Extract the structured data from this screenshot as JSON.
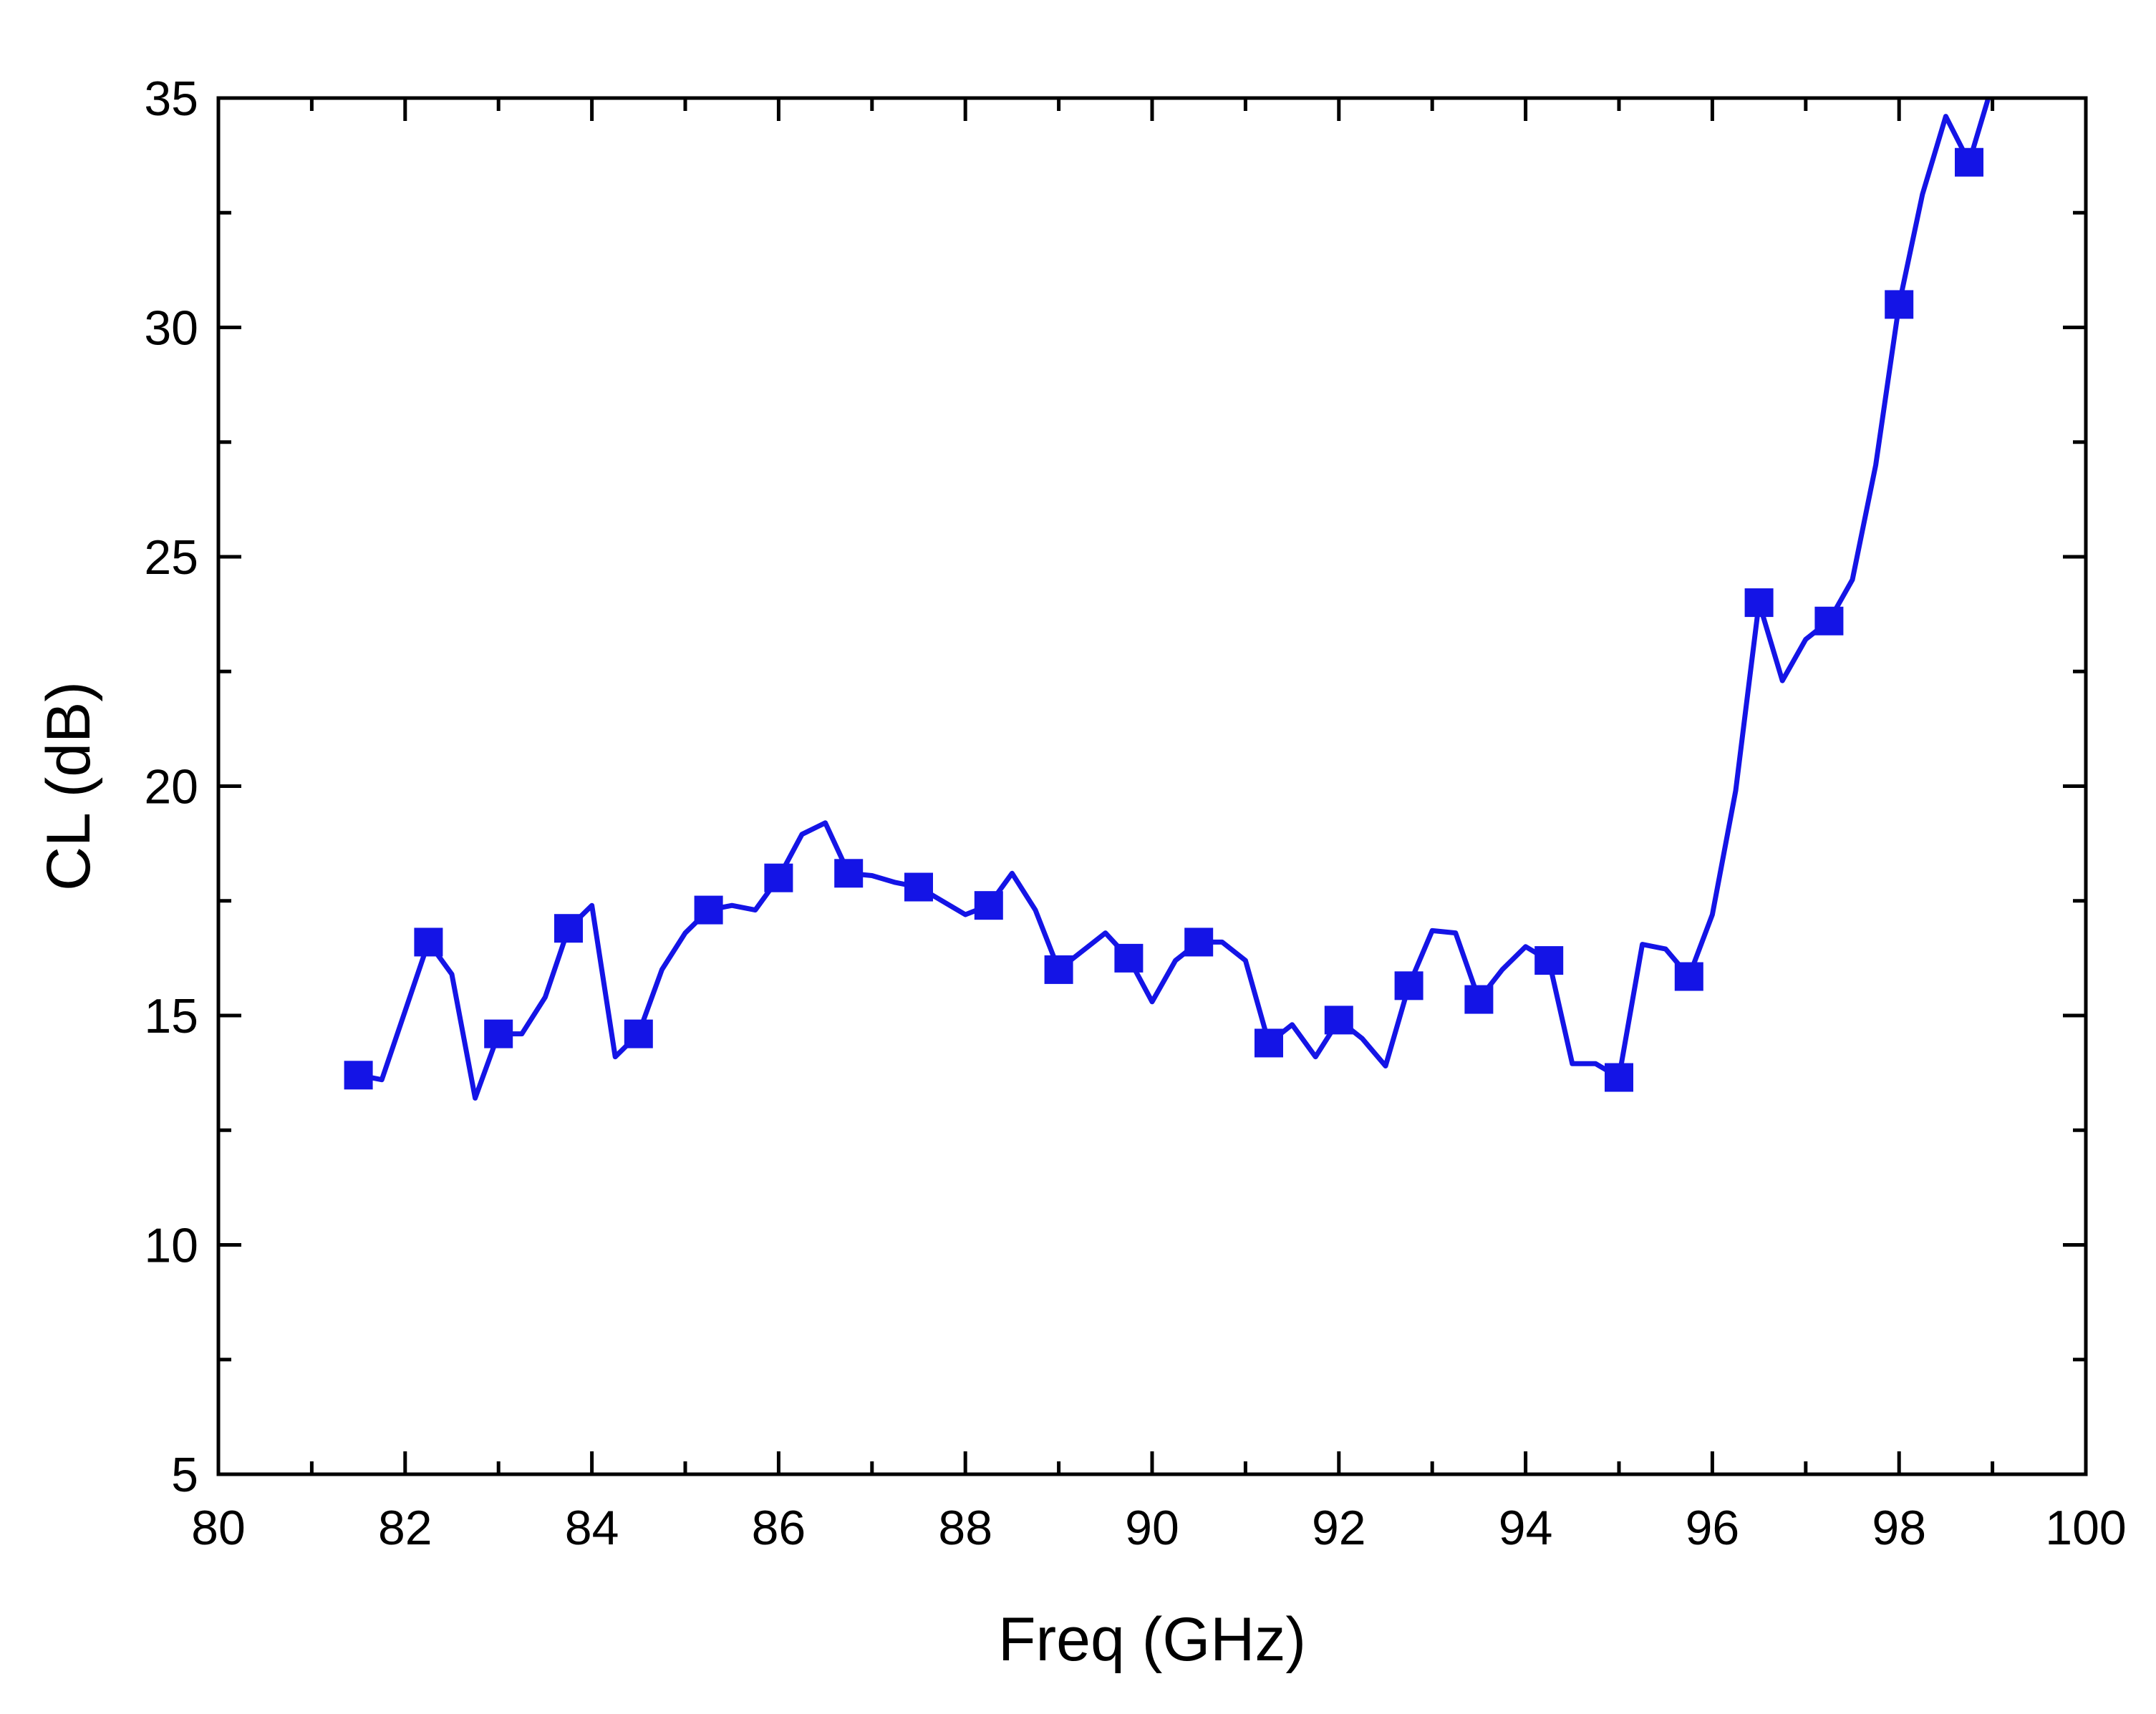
{
  "chart_data": {
    "type": "line",
    "title": "",
    "xlabel": "Freq (GHz)",
    "ylabel": "CL  (dB)",
    "xlim": [
      80,
      100
    ],
    "ylim": [
      5,
      35
    ],
    "x_ticks": [
      80,
      82,
      84,
      86,
      88,
      90,
      92,
      94,
      96,
      98,
      100
    ],
    "y_ticks": [
      5,
      10,
      15,
      20,
      25,
      30,
      35
    ],
    "x_tick_labels": [
      "80",
      "82",
      "84",
      "86",
      "88",
      "90",
      "92",
      "94",
      "96",
      "98",
      "100"
    ],
    "y_tick_labels": [
      "5",
      "10",
      "15",
      "20",
      "25",
      "30",
      "35"
    ],
    "grid": false,
    "line_color": "#1414e6",
    "marker": "square",
    "series": [
      {
        "line": [
          [
            81.5,
            13.7
          ],
          [
            81.75,
            13.6
          ],
          [
            82.0,
            15.1
          ],
          [
            82.25,
            16.6
          ],
          [
            82.5,
            15.9
          ],
          [
            82.75,
            13.2
          ],
          [
            83.0,
            14.6
          ],
          [
            83.25,
            14.6
          ],
          [
            83.5,
            15.4
          ],
          [
            83.75,
            16.9
          ],
          [
            84.0,
            17.4
          ],
          [
            84.25,
            14.1
          ],
          [
            84.5,
            14.6
          ],
          [
            84.75,
            16.0
          ],
          [
            85.0,
            16.8
          ],
          [
            85.25,
            17.3
          ],
          [
            85.5,
            17.4
          ],
          [
            85.75,
            17.3
          ],
          [
            86.0,
            18.0
          ],
          [
            86.25,
            18.95
          ],
          [
            86.5,
            19.2
          ],
          [
            86.75,
            18.1
          ],
          [
            87.0,
            18.05
          ],
          [
            87.25,
            17.9
          ],
          [
            87.5,
            17.8
          ],
          [
            87.75,
            17.5
          ],
          [
            88.0,
            17.2
          ],
          [
            88.25,
            17.4
          ],
          [
            88.5,
            18.1
          ],
          [
            88.75,
            17.3
          ],
          [
            89.0,
            16.0
          ],
          [
            89.25,
            16.4
          ],
          [
            89.5,
            16.8
          ],
          [
            89.75,
            16.25
          ],
          [
            90.0,
            15.3
          ],
          [
            90.25,
            16.2
          ],
          [
            90.5,
            16.6
          ],
          [
            90.75,
            16.6
          ],
          [
            91.0,
            16.2
          ],
          [
            91.25,
            14.4
          ],
          [
            91.5,
            14.8
          ],
          [
            91.75,
            14.1
          ],
          [
            92.0,
            14.9
          ],
          [
            92.25,
            14.5
          ],
          [
            92.5,
            13.9
          ],
          [
            92.75,
            15.65
          ],
          [
            93.0,
            16.85
          ],
          [
            93.25,
            16.8
          ],
          [
            93.5,
            15.35
          ],
          [
            93.75,
            16.0
          ],
          [
            94.0,
            16.5
          ],
          [
            94.25,
            16.2
          ],
          [
            94.5,
            13.95
          ],
          [
            94.75,
            13.95
          ],
          [
            95.0,
            13.65
          ],
          [
            95.25,
            16.55
          ],
          [
            95.5,
            16.45
          ],
          [
            95.75,
            15.85
          ],
          [
            96.0,
            17.2
          ],
          [
            96.25,
            19.9
          ],
          [
            96.5,
            24.0
          ],
          [
            96.75,
            22.3
          ],
          [
            97.0,
            23.2
          ],
          [
            97.25,
            23.6
          ],
          [
            97.5,
            24.5
          ],
          [
            97.75,
            27.0
          ],
          [
            98.0,
            30.5
          ],
          [
            98.25,
            32.9
          ],
          [
            98.5,
            34.6
          ],
          [
            98.75,
            33.6
          ],
          [
            99.0,
            35.3
          ]
        ],
        "markers": [
          [
            81.5,
            13.7
          ],
          [
            82.25,
            16.6
          ],
          [
            83.0,
            14.6
          ],
          [
            83.75,
            16.9
          ],
          [
            84.5,
            14.6
          ],
          [
            85.25,
            17.3
          ],
          [
            86.0,
            18.0
          ],
          [
            86.75,
            18.1
          ],
          [
            87.5,
            17.8
          ],
          [
            88.25,
            17.4
          ],
          [
            89.0,
            16.0
          ],
          [
            89.75,
            16.25
          ],
          [
            90.5,
            16.6
          ],
          [
            91.25,
            14.4
          ],
          [
            92.0,
            14.9
          ],
          [
            92.75,
            15.65
          ],
          [
            93.5,
            15.35
          ],
          [
            94.25,
            16.2
          ],
          [
            95.0,
            13.65
          ],
          [
            95.75,
            15.85
          ],
          [
            96.5,
            24.0
          ],
          [
            97.25,
            23.6
          ],
          [
            98.0,
            30.5
          ],
          [
            98.75,
            33.6
          ]
        ]
      }
    ]
  }
}
